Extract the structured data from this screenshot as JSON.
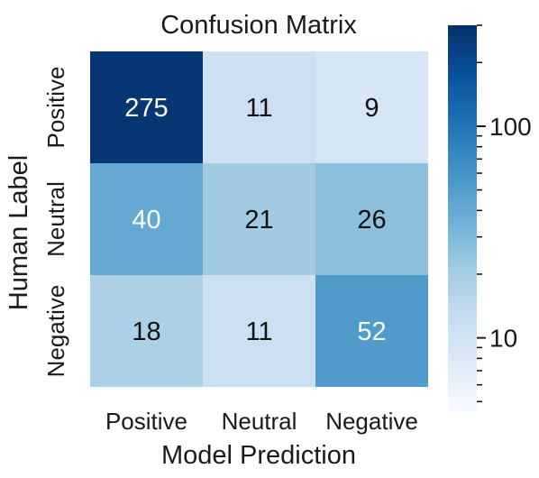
{
  "chart_data": {
    "type": "heatmap",
    "title": "Confusion Matrix",
    "xlabel": "Model Prediction",
    "ylabel": "Human Label",
    "x_categories": [
      "Positive",
      "Neutral",
      "Negative"
    ],
    "y_categories": [
      "Positive",
      "Neutral",
      "Negative"
    ],
    "values": [
      [
        275,
        11,
        9
      ],
      [
        40,
        21,
        26
      ],
      [
        18,
        11,
        52
      ]
    ],
    "colormap": "Blues",
    "colorbar": {
      "scale": "log",
      "range": [
        4.5,
        300
      ],
      "major_ticks": [
        10,
        100
      ],
      "major_labels": [
        "10",
        "100"
      ],
      "minor_ticks": [
        5,
        6,
        7,
        8,
        9,
        20,
        30,
        40,
        50,
        60,
        70,
        80,
        90,
        200,
        300
      ]
    },
    "colors": {
      "text_light": "#ffffff",
      "text_dark": "#111111"
    }
  }
}
